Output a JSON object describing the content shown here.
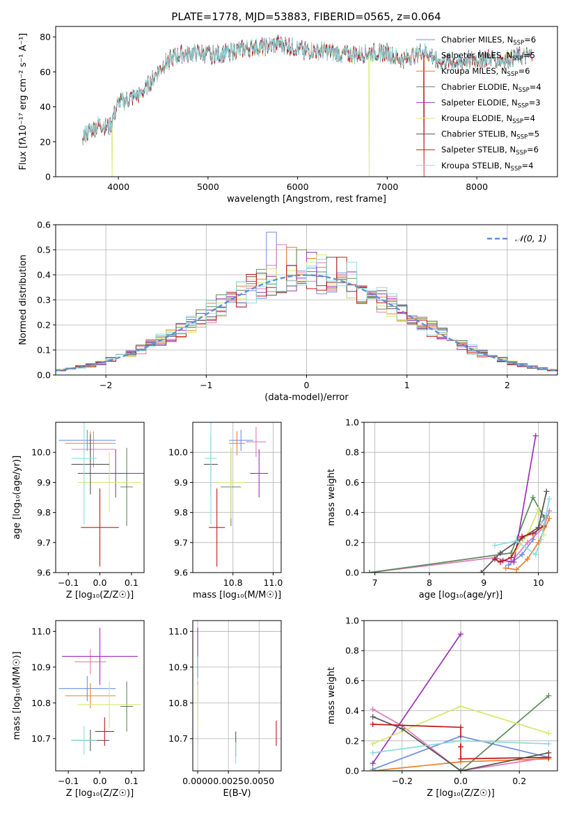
{
  "title": "PLATE=1778, MJD=53883, FIBERID=0565, z=0.064",
  "colors": [
    "#6f8fdc",
    "#e07ab8",
    "#e8802a",
    "#5b8a5b",
    "#9b30b8",
    "#d6e86a",
    "#555555",
    "#c01818",
    "#8adce0"
  ],
  "legend": [
    {
      "name": "Chabrier MILES",
      "nssp": "6"
    },
    {
      "name": "Salpeter MILES",
      "nssp": "5"
    },
    {
      "name": "Kroupa MILES",
      "nssp": "6"
    },
    {
      "name": "Chabrier ELODIE",
      "nssp": "4"
    },
    {
      "name": "Salpeter ELODIE",
      "nssp": "3"
    },
    {
      "name": "Kroupa ELODIE",
      "nssp": "4"
    },
    {
      "name": "Chabrier STELIB",
      "nssp": "5"
    },
    {
      "name": "Salpeter STELIB",
      "nssp": "6"
    },
    {
      "name": "Kroupa STELIB",
      "nssp": "4"
    }
  ],
  "chart_data": [
    {
      "id": "spectrum",
      "type": "line",
      "xlabel": "wavelength [Angstrom, rest frame]",
      "ylabel": "Flux [f_λ 10^-17 erg cm^-2 s^-1 A^-1]",
      "xlim": [
        3300,
        8900
      ],
      "ylim": [
        0,
        86
      ],
      "xticks": [
        4000,
        5000,
        6000,
        7000,
        8000
      ],
      "yticks": [
        0,
        20,
        40,
        60,
        80
      ],
      "continuum": [
        [
          3600,
          23
        ],
        [
          3700,
          27
        ],
        [
          3800,
          30
        ],
        [
          3900,
          28
        ],
        [
          4000,
          42
        ],
        [
          4100,
          44
        ],
        [
          4200,
          46
        ],
        [
          4300,
          50
        ],
        [
          4400,
          57
        ],
        [
          4500,
          64
        ],
        [
          4600,
          68
        ],
        [
          4700,
          70
        ],
        [
          4800,
          70
        ],
        [
          4900,
          71
        ],
        [
          5000,
          70
        ],
        [
          5100,
          70
        ],
        [
          5200,
          71
        ],
        [
          5300,
          72
        ],
        [
          5400,
          73
        ],
        [
          5500,
          74
        ],
        [
          5600,
          74
        ],
        [
          5700,
          75
        ],
        [
          5800,
          76
        ],
        [
          5900,
          75
        ],
        [
          6000,
          73
        ],
        [
          6100,
          72
        ],
        [
          6200,
          72
        ],
        [
          6300,
          72
        ],
        [
          6400,
          71
        ],
        [
          6500,
          70
        ],
        [
          6600,
          70
        ],
        [
          6700,
          70
        ],
        [
          6800,
          71
        ],
        [
          6900,
          71
        ],
        [
          7000,
          71
        ],
        [
          7100,
          68
        ],
        [
          7200,
          67
        ],
        [
          7300,
          70
        ],
        [
          7400,
          72
        ],
        [
          7500,
          69
        ],
        [
          7600,
          66
        ],
        [
          7700,
          66
        ],
        [
          7800,
          65
        ],
        [
          7900,
          67
        ],
        [
          8000,
          67
        ],
        [
          8100,
          68
        ],
        [
          8200,
          68
        ],
        [
          8300,
          67
        ],
        [
          8400,
          68
        ],
        [
          8500,
          69
        ],
        [
          8600,
          69
        ]
      ],
      "dropouts": [
        [
          3930,
          0,
          5
        ],
        [
          6800,
          0,
          5
        ],
        [
          7410,
          0,
          7
        ]
      ]
    },
    {
      "id": "residual_hist",
      "type": "histogram",
      "xlabel": "(data-model)/error",
      "ylabel": "Normed distribution",
      "xlim": [
        -2.5,
        2.5
      ],
      "ylim": [
        0,
        0.6
      ],
      "xticks": [
        -2,
        -1,
        0,
        1,
        2
      ],
      "yticks": [
        0,
        0.1,
        0.2,
        0.3,
        0.4,
        0.5,
        0.6
      ],
      "bin_width": 0.1,
      "reference_label": "N(0,1)",
      "peaks": [
        0.57,
        0.52,
        0.51,
        0.5,
        0.49,
        0.48,
        0.47,
        0.47,
        0.45
      ]
    },
    {
      "id": "age_vs_Z",
      "type": "errorbar",
      "xlabel": "Z [log10(Z/Z☉)]",
      "ylabel": "age [log10(age/yr)]",
      "xlim": [
        -0.14,
        0.14
      ],
      "ylim": [
        9.6,
        10.1
      ],
      "xticks": [
        -0.1,
        0.0,
        0.1
      ],
      "yticks": [
        9.6,
        9.7,
        9.8,
        9.9,
        10.0
      ],
      "points": [
        {
          "x": -0.04,
          "xerr": 0.09,
          "y": 10.04,
          "yerr": 0.035
        },
        {
          "x": -0.02,
          "xerr": 0.07,
          "y": 10.01,
          "yerr": 0.06
        },
        {
          "x": -0.03,
          "xerr": 0.08,
          "y": 10.03,
          "yerr": 0.04
        },
        {
          "x": 0.085,
          "xerr": 0.02,
          "y": 9.885,
          "yerr": 0.13
        },
        {
          "x": 0.05,
          "xerr": 0.12,
          "y": 9.93,
          "yerr": 0.08
        },
        {
          "x": 0.03,
          "xerr": 0.1,
          "y": 9.9,
          "yerr": 0.1
        },
        {
          "x": -0.03,
          "xerr": 0.06,
          "y": 9.96,
          "yerr": 0.1
        },
        {
          "x": 0.0,
          "xerr": 0.06,
          "y": 9.75,
          "yerr": 0.13
        },
        {
          "x": -0.05,
          "xerr": 0.04,
          "y": 9.98,
          "yerr": 0.22
        }
      ]
    },
    {
      "id": "age_vs_mass",
      "type": "errorbar",
      "xlabel": "mass [log10(M/M☉)]",
      "ylabel": "",
      "xlim": [
        10.6,
        11.04
      ],
      "ylim": [
        9.6,
        10.1
      ],
      "xticks": [
        10.8,
        11.0
      ],
      "yticks": [
        9.6,
        9.7,
        9.8,
        9.9,
        10.0
      ],
      "points": [
        {
          "x": 10.84,
          "xerr": 0.06,
          "y": 10.04,
          "yerr": 0.035
        },
        {
          "x": 10.915,
          "xerr": 0.05,
          "y": 10.035,
          "yerr": 0.05
        },
        {
          "x": 10.82,
          "xerr": 0.04,
          "y": 10.03,
          "yerr": 0.04
        },
        {
          "x": 10.79,
          "xerr": 0.05,
          "y": 9.885,
          "yerr": 0.13
        },
        {
          "x": 10.93,
          "xerr": 0.045,
          "y": 9.93,
          "yerr": 0.08
        },
        {
          "x": 10.79,
          "xerr": 0.07,
          "y": 9.9,
          "yerr": 0.12
        },
        {
          "x": 10.69,
          "xerr": 0.035,
          "y": 9.96,
          "yerr": 0.1
        },
        {
          "x": 10.72,
          "xerr": 0.04,
          "y": 9.75,
          "yerr": 0.13
        },
        {
          "x": 10.69,
          "xerr": 0.03,
          "y": 9.98,
          "yerr": 0.22
        }
      ]
    },
    {
      "id": "weight_vs_age",
      "type": "line",
      "xlabel": "age [log10(age/yr)]",
      "ylabel": "mass weight",
      "xlim": [
        6.8,
        10.35
      ],
      "ylim": [
        0,
        1.0
      ],
      "xticks": [
        7,
        8,
        9,
        10
      ],
      "yticks": [
        0.0,
        0.2,
        0.4,
        0.6,
        0.8,
        1.0
      ],
      "series": [
        {
          "points": [
            [
              9.45,
              0.05
            ],
            [
              9.7,
              0.12
            ],
            [
              9.9,
              0.22
            ],
            [
              10.0,
              0.3
            ],
            [
              10.15,
              0.38
            ]
          ]
        },
        {
          "points": [
            [
              6.9,
              0.0
            ],
            [
              9.2,
              0.1
            ],
            [
              9.5,
              0.07
            ],
            [
              9.8,
              0.2
            ],
            [
              10.1,
              0.3
            ],
            [
              10.2,
              0.41
            ]
          ]
        },
        {
          "points": [
            [
              9.4,
              0.03
            ],
            [
              9.6,
              0.02
            ],
            [
              9.8,
              0.09
            ],
            [
              10.0,
              0.2
            ],
            [
              10.2,
              0.36
            ]
          ]
        },
        {
          "points": [
            [
              6.9,
              0.0
            ],
            [
              9.5,
              0.13
            ],
            [
              9.9,
              0.5
            ],
            [
              10.1,
              0.37
            ]
          ]
        },
        {
          "points": [
            [
              9.35,
              0.08
            ],
            [
              9.55,
              0.07
            ],
            [
              9.95,
              0.91
            ]
          ]
        },
        {
          "points": [
            [
              9.5,
              0.1
            ],
            [
              9.8,
              0.25
            ],
            [
              10.0,
              0.42
            ],
            [
              10.1,
              0.25
            ]
          ]
        },
        {
          "points": [
            [
              8.95,
              0.0
            ],
            [
              9.3,
              0.13
            ],
            [
              9.7,
              0.23
            ],
            [
              10.0,
              0.3
            ],
            [
              10.15,
              0.54
            ]
          ]
        },
        {
          "points": [
            [
              9.2,
              0.09
            ],
            [
              9.3,
              0.07
            ],
            [
              9.5,
              0.1
            ],
            [
              9.7,
              0.24
            ],
            [
              9.9,
              0.26
            ],
            [
              10.1,
              0.31
            ]
          ]
        },
        {
          "points": [
            [
              9.2,
              0.18
            ],
            [
              9.6,
              0.21
            ],
            [
              9.95,
              0.12
            ],
            [
              10.05,
              0.22
            ],
            [
              10.2,
              0.49
            ]
          ]
        }
      ]
    },
    {
      "id": "mass_vs_Z",
      "type": "errorbar",
      "xlabel": "Z [log10(Z/Z☉)]",
      "ylabel": "mass [log10(M/M☉)]",
      "xlim": [
        -0.14,
        0.14
      ],
      "ylim": [
        10.61,
        11.03
      ],
      "xticks": [
        -0.1,
        0.0,
        0.1
      ],
      "yticks": [
        10.7,
        10.8,
        10.9,
        11.0
      ],
      "points": [
        {
          "x": -0.04,
          "xerr": 0.09,
          "y": 10.84,
          "yerr": 0.035
        },
        {
          "x": -0.03,
          "xerr": 0.05,
          "y": 10.915,
          "yerr": 0.035
        },
        {
          "x": -0.03,
          "xerr": 0.08,
          "y": 10.82,
          "yerr": 0.035
        },
        {
          "x": 0.085,
          "xerr": 0.02,
          "y": 10.79,
          "yerr": 0.07
        },
        {
          "x": 0.0,
          "xerr": 0.12,
          "y": 10.93,
          "yerr": 0.08
        },
        {
          "x": 0.03,
          "xerr": 0.1,
          "y": 10.795,
          "yerr": 0.065
        },
        {
          "x": -0.03,
          "xerr": 0.06,
          "y": 10.695,
          "yerr": 0.03
        },
        {
          "x": 0.015,
          "xerr": 0.03,
          "y": 10.72,
          "yerr": 0.04
        },
        {
          "x": -0.05,
          "xerr": 0.04,
          "y": 10.695,
          "yerr": 0.04
        }
      ]
    },
    {
      "id": "mass_vs_ebv",
      "type": "errorbar",
      "xlabel": "E(B-V)",
      "ylabel": "",
      "xlim": [
        -0.0004,
        0.0068
      ],
      "ylim": [
        10.61,
        11.03
      ],
      "xticks": [
        0.0,
        0.0025,
        0.005
      ],
      "xticklabels": [
        "0.0000",
        "0.0025",
        "0.0050"
      ],
      "yticks": [
        10.7,
        10.8,
        10.9,
        11.0
      ],
      "points": [
        {
          "x": 0.0,
          "xerr": 0.0,
          "y": 10.94,
          "yerr": 0.07
        },
        {
          "x": 0.0,
          "xerr": 0.0,
          "y": 10.84,
          "yerr": 0.02
        },
        {
          "x": 0.0,
          "xerr": 0.0,
          "y": 10.8,
          "yerr": 0.05
        },
        {
          "x": 0.0,
          "xerr": 0.0,
          "y": 10.79,
          "yerr": 0.06
        },
        {
          "x": 0.0,
          "xerr": 0.0,
          "y": 10.97,
          "yerr": 0.04
        },
        {
          "x": 0.0,
          "xerr": 0.0,
          "y": 10.79,
          "yerr": 0.06
        },
        {
          "x": 0.0031,
          "xerr": 0.0,
          "y": 10.685,
          "yerr": 0.035
        },
        {
          "x": 0.0064,
          "xerr": 0.0,
          "y": 10.715,
          "yerr": 0.035
        },
        {
          "x": 0.0031,
          "xerr": 0.0,
          "y": 10.66,
          "yerr": 0.03
        }
      ]
    },
    {
      "id": "weight_vs_Z",
      "type": "line",
      "xlabel": "Z [log10(Z/Z☉)]",
      "ylabel": "mass weight",
      "xlim": [
        -0.33,
        0.33
      ],
      "ylim": [
        0,
        1.0
      ],
      "xticks": [
        -0.2,
        0.0,
        0.2
      ],
      "yticks": [
        0.0,
        0.2,
        0.4,
        0.6,
        0.8,
        1.0
      ],
      "series": [
        {
          "points": [
            [
              -0.3,
              0.01
            ],
            [
              0.0,
              0.23
            ],
            [
              0.3,
              0.09
            ]
          ]
        },
        {
          "points": [
            [
              -0.3,
              0.41
            ],
            [
              -0.2,
              0.3
            ],
            [
              0.0,
              0.0
            ],
            [
              0.3,
              0.09
            ]
          ]
        },
        {
          "points": [
            [
              -0.3,
              0.0
            ],
            [
              0.0,
              0.06
            ],
            [
              0.3,
              0.08
            ]
          ]
        },
        {
          "points": [
            [
              -0.3,
              0.0
            ],
            [
              0.0,
              0.0
            ],
            [
              0.3,
              0.5
            ]
          ]
        },
        {
          "points": [
            [
              -0.3,
              0.05
            ],
            [
              0.0,
              0.91
            ]
          ]
        },
        {
          "points": [
            [
              -0.3,
              0.18
            ],
            [
              0.0,
              0.43
            ],
            [
              0.3,
              0.25
            ]
          ]
        },
        {
          "points": [
            [
              -0.3,
              0.36
            ],
            [
              -0.2,
              0.28
            ],
            [
              0.0,
              0.0
            ],
            [
              0.3,
              0.12
            ]
          ]
        },
        {
          "points": [
            [
              -0.3,
              0.31
            ],
            [
              0.0,
              0.29
            ],
            [
              0.0,
              0.16
            ],
            [
              0.0,
              0.08
            ],
            [
              0.3,
              0.09
            ]
          ]
        },
        {
          "points": [
            [
              -0.3,
              0.12
            ],
            [
              0.0,
              0.2
            ],
            [
              0.3,
              0.18
            ]
          ]
        }
      ]
    }
  ]
}
